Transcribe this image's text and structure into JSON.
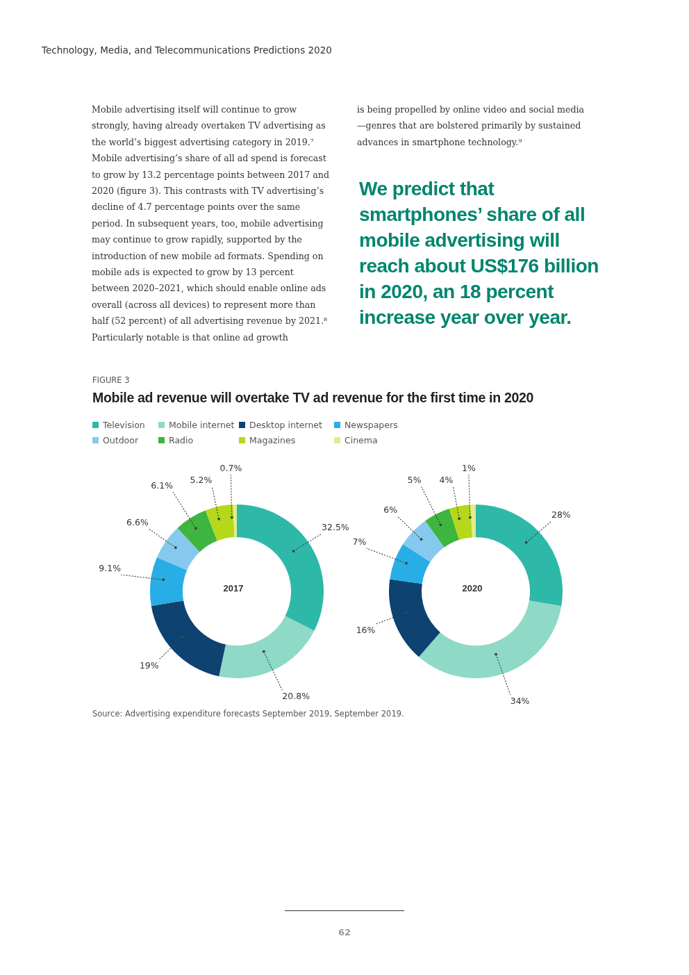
{
  "chart_data": [
    {
      "type": "donut",
      "title": "Mobile ad revenue will overtake TV ad revenue for the first time in 2020",
      "categories": [
        "Television",
        "Mobile internet",
        "Desktop internet",
        "Newspapers",
        "Outdoor",
        "Radio",
        "Magazines",
        "Cinema"
      ],
      "values": [
        32.5,
        20.8,
        19,
        9.1,
        6.6,
        6.1,
        5.2,
        0.7
      ],
      "value_labels": [
        "32.5%",
        "20.8%",
        "19%",
        "9.1%",
        "6.6%",
        "6.1%",
        "5.2%",
        "0.7%"
      ],
      "colors": [
        "#2eb8a8",
        "#8fd9c7",
        "#0d4271",
        "#28aee6",
        "#86c9ef",
        "#3db53f",
        "#b5d81b",
        "#e0ee8a"
      ],
      "legend": "top left",
      "annotations": [
        "2017",
        "Technology, Media, and Telecommunications Predictions 2020",
        "Mobile advertising itself will continue to grow strongly, having already overtaken TV advertising as the world’s biggest advertising category in 2019.⁷ Mobile advertising’s share of all ad spend is forecast to grow by 13.2 percentage points between 2017 and 2020 (figure 3). This contrasts with TV advertising’s decline of 4.7 percentage points over the same period. In subsequent years, too, mobile advertising may continue to grow rapidly, supported by the introduction of new mobile ad formats. Spending on mobile ads is expected to grow by 13 percent between 2020–2021, which should enable online ads overall (across all devices) to represent more than half (52 percent) of all advertising revenue by 2021.⁸ Particularly notable is that online ad growth",
        "is being propelled by online video and social media—genres that are bolstered primarily by sustained advances in smartphone technology.⁹",
        "We predict that smartphones’ share of all mobile advertising will reach about US$176 billion in 2020, an 18 percent increase year over year.",
        "FIGURE 3",
        "Source: Advertising expenditure forecasts September 2019, September 2019.",
        "62"
      ]
    },
    {
      "type": "donut",
      "categories": [
        null,
        null,
        null,
        null,
        null,
        null,
        null,
        null
      ],
      "values": [
        28,
        34,
        16,
        7,
        6,
        5,
        4,
        1
      ],
      "value_labels": [
        "28%",
        "34%",
        "16%",
        "7%",
        "6%",
        "5%",
        "4%",
        "1%"
      ],
      "colors": [
        "#2eb8a8",
        "#8fd9c7",
        "#0d4271",
        "#28aee6",
        "#86c9ef",
        "#3db53f",
        "#b5d81b",
        "#e0ee8a"
      ],
      "annotations": [
        "2020"
      ]
    }
  ]
}
